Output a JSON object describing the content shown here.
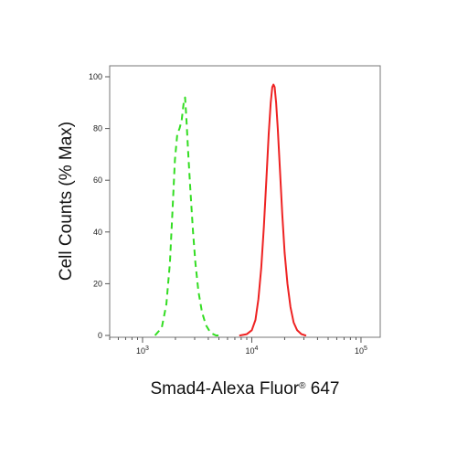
{
  "chart_data": {
    "type": "line",
    "title": "",
    "xlabel": "Smad4-Alexa Fluor",
    "xlabel_mark": "®",
    "xlabel_suffix": " 647",
    "ylabel": "Cell Counts (% Max)",
    "x_scale": "log",
    "xlim": [
      500,
      150000
    ],
    "ylim": [
      0,
      100
    ],
    "y_ticks": [
      0,
      20,
      40,
      60,
      80,
      100
    ],
    "x_ticks": [
      {
        "base": "10",
        "exp": "3",
        "value": 1000
      },
      {
        "base": "10",
        "exp": "4",
        "value": 10000
      },
      {
        "base": "10",
        "exp": "5",
        "value": 100000
      }
    ],
    "grid": false,
    "legend": "none",
    "series": [
      {
        "color": "#33dd22",
        "style": "dashed",
        "points": [
          [
            1300,
            0
          ],
          [
            1500,
            3
          ],
          [
            1650,
            12
          ],
          [
            1780,
            28
          ],
          [
            1880,
            48
          ],
          [
            1980,
            68
          ],
          [
            2080,
            78
          ],
          [
            2180,
            80
          ],
          [
            2280,
            83
          ],
          [
            2380,
            90
          ],
          [
            2450,
            92
          ],
          [
            2520,
            84
          ],
          [
            2620,
            70
          ],
          [
            2750,
            55
          ],
          [
            2900,
            40
          ],
          [
            3050,
            28
          ],
          [
            3250,
            17
          ],
          [
            3500,
            9
          ],
          [
            3800,
            4
          ],
          [
            4200,
            1
          ],
          [
            4700,
            0
          ],
          [
            5200,
            0
          ]
        ]
      },
      {
        "color": "#ee2222",
        "style": "solid",
        "points": [
          [
            7800,
            0
          ],
          [
            9000,
            0.5
          ],
          [
            10000,
            2
          ],
          [
            10800,
            6
          ],
          [
            11500,
            14
          ],
          [
            12200,
            26
          ],
          [
            12900,
            42
          ],
          [
            13600,
            60
          ],
          [
            14300,
            78
          ],
          [
            14900,
            90
          ],
          [
            15400,
            96
          ],
          [
            15800,
            97
          ],
          [
            16200,
            96
          ],
          [
            16700,
            90
          ],
          [
            17300,
            80
          ],
          [
            18100,
            64
          ],
          [
            19000,
            47
          ],
          [
            20000,
            32
          ],
          [
            21200,
            20
          ],
          [
            22600,
            11
          ],
          [
            24200,
            5
          ],
          [
            26000,
            2
          ],
          [
            28500,
            0.5
          ],
          [
            31000,
            0
          ]
        ]
      }
    ]
  }
}
